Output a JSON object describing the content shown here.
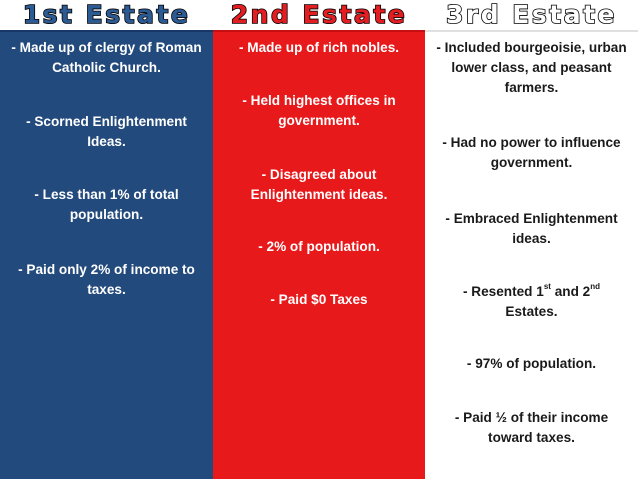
{
  "estates": [
    {
      "title": "1st Estate",
      "items": [
        "- Made up of clergy of Roman Catholic Church.",
        "- Scorned Enlightenment Ideas.",
        "- Less than 1% of total population.",
        "- Paid only 2% of income to taxes."
      ]
    },
    {
      "title": "2nd Estate",
      "items": [
        "- Made up of rich nobles.",
        "- Held highest offices in government.",
        "- Disagreed about Enlightenment ideas.",
        "- 2% of population.",
        "- Paid $0 Taxes"
      ]
    },
    {
      "title": "3rd Estate",
      "items": [
        "- Included bourgeoisie, urban lower class, and peasant farmers.",
        "- Had no power to influence government.",
        "- Embraced Enlightenment ideas.",
        "- Resented 1st and 2nd Estates.",
        "- 97% of population.",
        "- Paid ½ of their income toward taxes."
      ],
      "superscripts": [
        "st",
        "nd"
      ]
    }
  ],
  "colors": {
    "first_estate_bg": "#234a7c",
    "second_estate_bg": "#e8191b",
    "third_estate_bg": "#ffffff",
    "first_estate_title": "#2c5a93",
    "second_estate_title": "#e31e22",
    "third_estate_title": "#ffffff"
  }
}
